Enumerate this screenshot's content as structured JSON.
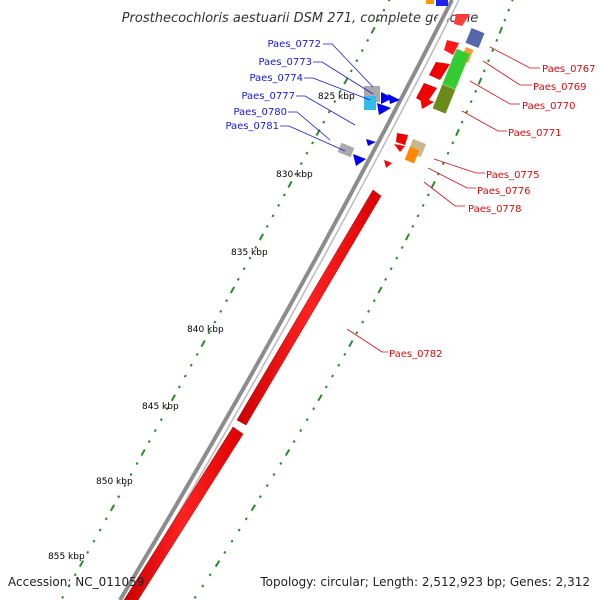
{
  "title": "Prosthecochloris aestuarii DSM 271, complete genome",
  "accession": "Accession: NC_011059",
  "summary": "Topology: circular; Length: 2,512,923 bp; Genes: 2,312",
  "colors": {
    "backbone": "#8c8c8c",
    "gene_forward": "#ff0000",
    "gene_reverse": "#0000ee",
    "tick": "#2a8a2a",
    "label_blue": "#1a1acc",
    "label_red": "#cc1111"
  },
  "kbp_marks": [
    "825 kbp",
    "830 kbp",
    "835 kbp",
    "840 kbp",
    "845 kbp",
    "850 kbp",
    "855 kbp"
  ],
  "blue_labels": [
    "Paes_0772",
    "Paes_0773",
    "Paes_0774",
    "Paes_0777",
    "Paes_0780",
    "Paes_0781"
  ],
  "red_labels": [
    "Paes_0767",
    "Paes_0769",
    "Paes_0770",
    "Paes_0771",
    "Paes_0775",
    "Paes_0776",
    "Paes_0778",
    "Paes_0782"
  ]
}
